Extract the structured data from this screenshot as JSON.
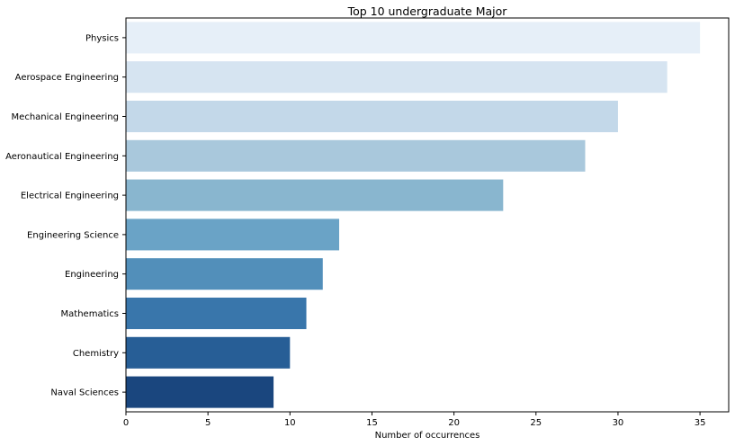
{
  "chart_data": {
    "type": "bar",
    "orientation": "horizontal",
    "title": "Top 10 undergraduate Major",
    "xlabel": "Number of occurrences",
    "ylabel": "",
    "categories": [
      "Physics",
      "Aerospace Engineering",
      "Mechanical Engineering",
      "Aeronautical Engineering",
      "Electrical Engineering",
      "Engineering Science",
      "Engineering",
      "Mathematics",
      "Chemistry",
      "Naval Sciences"
    ],
    "values": [
      35,
      33,
      30,
      28,
      23,
      13,
      12,
      11,
      10,
      9
    ],
    "xlim": [
      0,
      36.75
    ],
    "xticks": [
      0,
      5,
      10,
      15,
      20,
      25,
      30,
      35
    ],
    "grid": false,
    "legend": "none",
    "colors": [
      "#e6eff8",
      "#d6e4f1",
      "#c3d8e9",
      "#a9c8dc",
      "#89b6cf",
      "#6aa3c6",
      "#528fba",
      "#3976ab",
      "#275e96",
      "#1a467e"
    ]
  }
}
